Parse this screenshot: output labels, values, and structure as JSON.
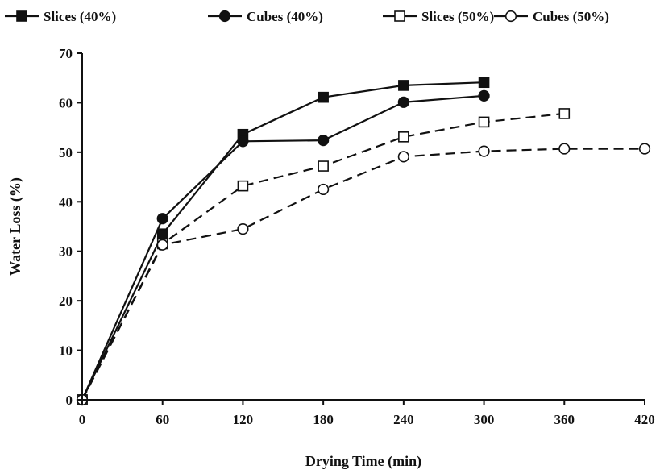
{
  "chart_data": {
    "type": "line",
    "title": "",
    "xlabel": "Drying Time (min)",
    "ylabel": "Water Loss (%)",
    "xlim": [
      0,
      420
    ],
    "ylim": [
      0,
      70
    ],
    "xticks": [
      0,
      60,
      120,
      180,
      240,
      300,
      360,
      420
    ],
    "yticks": [
      0,
      10,
      20,
      30,
      40,
      50,
      60,
      70
    ],
    "grid": false,
    "legend_position": "top",
    "series": [
      {
        "name": "Slices (40%)",
        "marker": "square-filled",
        "line": "solid",
        "points": [
          [
            0,
            0
          ],
          [
            60,
            33.5
          ],
          [
            120,
            53.6
          ],
          [
            180,
            61.1
          ],
          [
            240,
            63.5
          ],
          [
            300,
            64.1
          ]
        ]
      },
      {
        "name": "Cubes (40%)",
        "marker": "circle-filled",
        "line": "solid",
        "points": [
          [
            0,
            0
          ],
          [
            60,
            36.6
          ],
          [
            120,
            52.2
          ],
          [
            180,
            52.4
          ],
          [
            240,
            60.1
          ],
          [
            300,
            61.4
          ]
        ]
      },
      {
        "name": "Slices (50%)",
        "marker": "square-open",
        "line": "dashed",
        "points": [
          [
            0,
            0
          ],
          [
            60,
            31.5
          ],
          [
            120,
            43.2
          ],
          [
            180,
            47.2
          ],
          [
            240,
            53.1
          ],
          [
            300,
            56.1
          ],
          [
            360,
            57.8
          ]
        ]
      },
      {
        "name": "Cubes (50%)",
        "marker": "circle-open",
        "line": "dashed",
        "points": [
          [
            0,
            0
          ],
          [
            60,
            31.3
          ],
          [
            120,
            34.5
          ],
          [
            180,
            42.5
          ],
          [
            240,
            49.1
          ],
          [
            300,
            50.2
          ],
          [
            360,
            50.7
          ],
          [
            420,
            50.7
          ]
        ]
      }
    ]
  }
}
